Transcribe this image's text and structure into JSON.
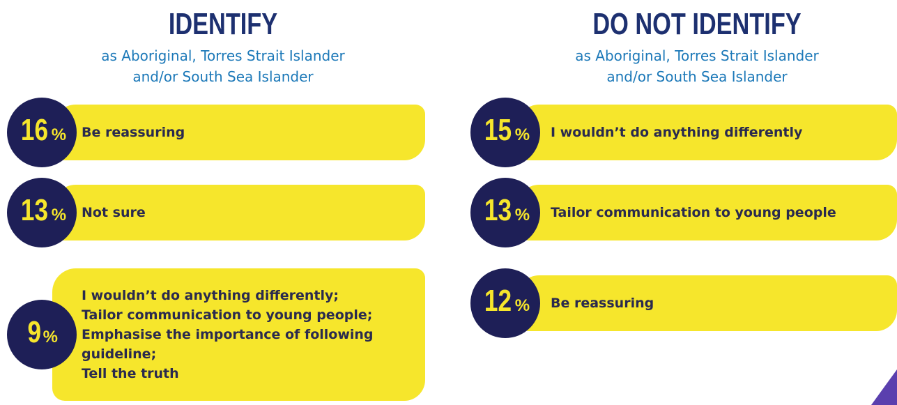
{
  "columns": [
    {
      "title": "IDENTIFY",
      "subtitle": [
        "as Aboriginal, Torres Strait Islander",
        "and/or South Sea Islander"
      ],
      "items": [
        {
          "value": 16,
          "unit": "%",
          "lines": [
            "Be reassuring"
          ]
        },
        {
          "value": 13,
          "unit": "%",
          "lines": [
            "Not sure"
          ]
        },
        {
          "value": 9,
          "unit": "%",
          "lines": [
            "I wouldn’t do anything differently;",
            "Tailor communication to young people;",
            "Emphasise the importance of following",
            "guideline;",
            "Tell the truth"
          ]
        }
      ]
    },
    {
      "title": "DO NOT IDENTIFY",
      "subtitle": [
        "as Aboriginal, Torres Strait Islander",
        "and/or South Sea Islander"
      ],
      "items": [
        {
          "value": 15,
          "unit": "%",
          "lines": [
            "I wouldn’t do anything differently"
          ]
        },
        {
          "value": 13,
          "unit": "%",
          "lines": [
            "Tailor communication to young people"
          ]
        },
        {
          "value": 12,
          "unit": "%",
          "lines": [
            "Be reassuring"
          ]
        }
      ]
    }
  ]
}
